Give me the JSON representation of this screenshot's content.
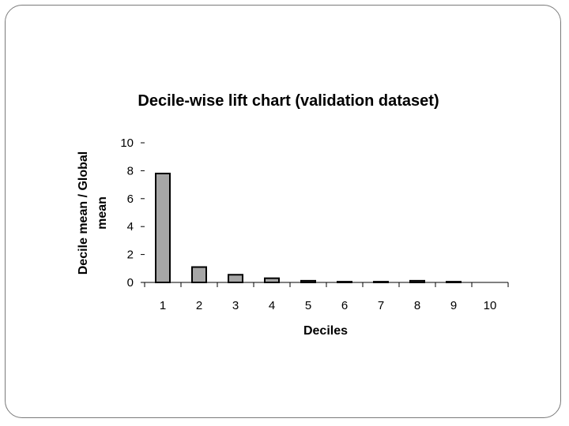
{
  "chart_data": {
    "type": "bar",
    "title": "Decile-wise lift chart (validation dataset)",
    "xlabel": "Deciles",
    "ylabel_lines": [
      "Decile mean / Global",
      "mean"
    ],
    "categories": [
      "1",
      "2",
      "3",
      "4",
      "5",
      "6",
      "7",
      "8",
      "9",
      "10"
    ],
    "values": [
      7.8,
      1.1,
      0.55,
      0.3,
      0.12,
      0.05,
      0.05,
      0.12,
      0.05,
      0.0
    ],
    "yticks": [
      "0",
      "2",
      "4",
      "6",
      "8",
      "10"
    ],
    "ylim": [
      0,
      10
    ],
    "grid": false,
    "legend": "none",
    "colors": {
      "bar_fill": "#a6a6a6",
      "bar_stroke": "#000000",
      "axis": "#000000"
    }
  }
}
